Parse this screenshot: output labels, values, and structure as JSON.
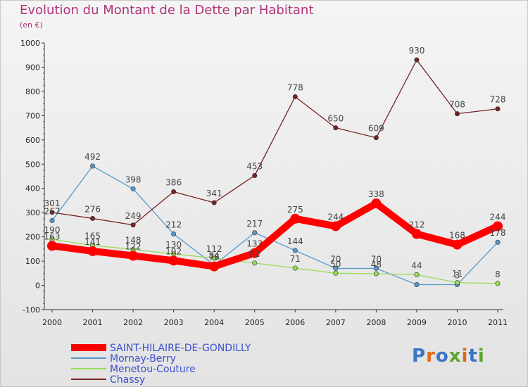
{
  "header": {
    "title": "Evolution du Montant de la Dette par Habitant",
    "unit": "(en €)"
  },
  "logo": {
    "text": "Proxiti"
  },
  "chart_data": {
    "type": "line",
    "title": "Evolution du Montant de la Dette par Habitant",
    "ylabel": "(en €)",
    "xlabel": "",
    "categories": [
      "2000",
      "2001",
      "2002",
      "2003",
      "2004",
      "2005",
      "2006",
      "2007",
      "2008",
      "2009",
      "2010",
      "2011"
    ],
    "ylim": [
      -100,
      1000
    ],
    "yticks": [
      -100,
      0,
      100,
      200,
      300,
      400,
      500,
      600,
      700,
      800,
      900,
      1000
    ],
    "grid": false,
    "legend_position": "bottom-left",
    "series": [
      {
        "name": "SAINT-HILAIRE-DE-GONDILLY",
        "color": "#ff0000",
        "emphasis": true,
        "values": [
          163,
          141,
          122,
          102,
          78,
          133,
          275,
          244,
          338,
          212,
          168,
          244
        ],
        "labels": [
          "163",
          "141",
          "122",
          "102",
          "78",
          "133",
          "275",
          "244",
          "338",
          "212",
          "168",
          "244"
        ]
      },
      {
        "name": "Mornay-Berry",
        "color": "#5599cc",
        "values": [
          267,
          492,
          398,
          212,
          84,
          217,
          144,
          70,
          70,
          3,
          3,
          178
        ],
        "labels": [
          "267",
          "492",
          "398",
          "212",
          "84",
          "217",
          "144",
          "70",
          "70",
          "",
          "3",
          "178"
        ]
      },
      {
        "name": "Menetou-Couture",
        "color": "#99dd55",
        "values": [
          190,
          165,
          148,
          130,
          112,
          92,
          71,
          50,
          48,
          44,
          11,
          8
        ],
        "labels": [
          "190",
          "165",
          "148",
          "130",
          "112",
          "92",
          "71",
          "50",
          "48",
          "44",
          "11",
          "8"
        ]
      },
      {
        "name": "Chassy",
        "color": "#772222",
        "values": [
          301,
          276,
          249,
          386,
          341,
          453,
          778,
          650,
          609,
          930,
          708,
          728
        ],
        "labels": [
          "301",
          "276",
          "249",
          "386",
          "341",
          "453",
          "778",
          "650",
          "609",
          "930",
          "708",
          "728"
        ]
      }
    ]
  }
}
